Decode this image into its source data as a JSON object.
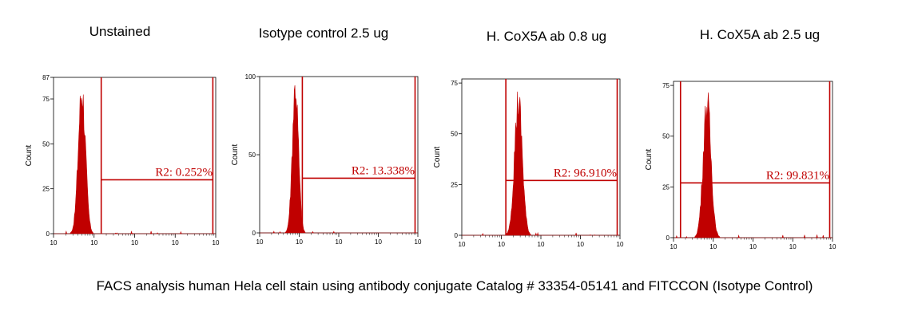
{
  "caption": "FACS analysis human Hela cell stain using antibody conjugate Catalog # 33354-05141 and FITCCON (Isotype Control)",
  "colors": {
    "histogram": "#c00000",
    "gate": "#c00000",
    "axis": "#000000"
  },
  "chart_data": [
    {
      "type": "area",
      "title": "Unstained",
      "ylabel": "Count",
      "x_scale": "log",
      "xlim": [
        1,
        10000
      ],
      "ylim": [
        0,
        87
      ],
      "y_ticks": [
        "0",
        "25",
        "50",
        "75",
        "87"
      ],
      "x_ticks": [
        "10",
        "10",
        "10",
        "10",
        "10"
      ],
      "peak": {
        "center": 5,
        "height": 85,
        "width": 0.08
      },
      "gate": {
        "label": "R2: 0.252%",
        "name": "R2",
        "percent": 0.252,
        "x_start": 15,
        "x_end": 8500,
        "y": 30
      }
    },
    {
      "type": "area",
      "title": "Isotype control 2.5 ug",
      "ylabel": "Count",
      "x_scale": "log",
      "xlim": [
        1,
        10000
      ],
      "ylim": [
        0,
        100
      ],
      "y_ticks": [
        "0",
        "50",
        "100"
      ],
      "x_ticks": [
        "10",
        "10",
        "10",
        "10",
        "10"
      ],
      "peak": {
        "center": 8,
        "height": 100,
        "width": 0.07
      },
      "gate": {
        "label": "R2: 13.338%",
        "name": "R2",
        "percent": 13.338,
        "x_start": 12,
        "x_end": 8500,
        "y": 35
      }
    },
    {
      "type": "area",
      "title": "H. CoX5A ab 0.8 ug",
      "ylabel": "Count",
      "x_scale": "log",
      "xlim": [
        1,
        10000
      ],
      "ylim": [
        0,
        77
      ],
      "y_ticks": [
        "0",
        "25",
        "50",
        "75"
      ],
      "x_ticks": [
        "10",
        "10",
        "10",
        "10",
        "10"
      ],
      "peak": {
        "center": 27,
        "height": 70,
        "width": 0.09
      },
      "gate": {
        "label": "R2: 96.910%",
        "name": "R2",
        "percent": 96.91,
        "x_start": 13,
        "x_end": 8500,
        "y": 27
      }
    },
    {
      "type": "area",
      "title": "H. CoX5A ab 2.5 ug",
      "ylabel": "Count",
      "x_scale": "log",
      "xlim": [
        1,
        10000
      ],
      "ylim": [
        0,
        77
      ],
      "y_ticks": [
        "0",
        "25",
        "50",
        "75"
      ],
      "x_ticks": [
        "10",
        "10",
        "10",
        "10",
        "10"
      ],
      "peak": {
        "center": 7,
        "height": 70,
        "width": 0.09
      },
      "gate": {
        "label": "R2: 99.831%",
        "name": "R2",
        "percent": 99.831,
        "x_start": 1.5,
        "x_end": 8500,
        "y": 27
      }
    }
  ]
}
